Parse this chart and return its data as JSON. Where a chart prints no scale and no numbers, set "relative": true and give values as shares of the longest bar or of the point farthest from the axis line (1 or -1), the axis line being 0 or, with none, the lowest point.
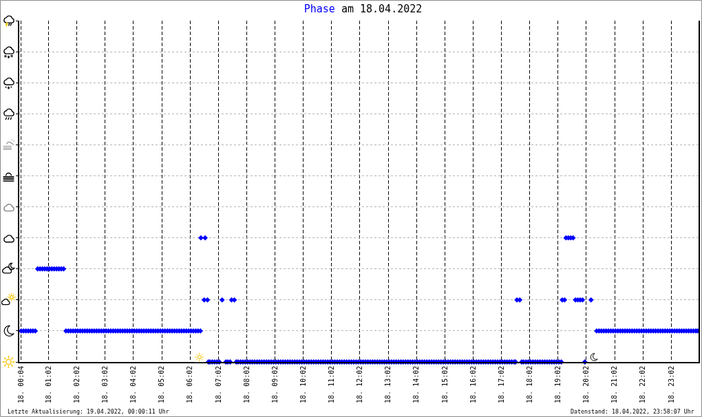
{
  "chart_data": {
    "type": "scatter",
    "title": "Phase am 18.04.2022",
    "annotations": [
      "Letzte Aktualisierung: 19.04.2022, 00:00:11 Uhr",
      "Datenstand: 18.04.2022, 23:58:07 Uhr"
    ],
    "x": [
      "2022-04-18T00:04",
      "2022-04-18T00:09",
      "2022-04-18T00:14",
      "2022-04-18T00:19",
      "2022-04-18T00:24",
      "2022-04-18T00:29",
      "2022-04-18T00:34",
      "2022-04-18T00:39",
      "2022-04-18T00:44",
      "2022-04-18T00:49",
      "2022-04-18T00:54",
      "2022-04-18T00:59",
      "2022-04-18T01:04",
      "2022-04-18T01:09",
      "2022-04-18T01:14",
      "2022-04-18T01:19",
      "2022-04-18T01:24",
      "2022-04-18T01:29",
      "2022-04-18T01:34",
      "2022-04-18T01:39",
      "2022-04-18T01:44",
      "2022-04-18T01:49",
      "2022-04-18T01:54",
      "2022-04-18T01:59",
      "2022-04-18T02:04",
      "2022-04-18T02:09",
      "2022-04-18T02:14",
      "2022-04-18T02:19",
      "2022-04-18T02:24",
      "2022-04-18T02:29",
      "2022-04-18T02:34",
      "2022-04-18T02:39",
      "2022-04-18T02:44",
      "2022-04-18T02:49",
      "2022-04-18T02:54",
      "2022-04-18T02:59",
      "2022-04-18T03:04",
      "2022-04-18T03:09",
      "2022-04-18T03:14",
      "2022-04-18T03:19",
      "2022-04-18T03:24",
      "2022-04-18T03:29",
      "2022-04-18T03:34",
      "2022-04-18T03:39",
      "2022-04-18T03:44",
      "2022-04-18T03:49",
      "2022-04-18T03:54",
      "2022-04-18T03:59",
      "2022-04-18T04:04",
      "2022-04-18T04:09",
      "2022-04-18T04:14",
      "2022-04-18T04:19",
      "2022-04-18T04:24",
      "2022-04-18T04:29",
      "2022-04-18T04:34",
      "2022-04-18T04:39",
      "2022-04-18T04:44",
      "2022-04-18T04:49",
      "2022-04-18T04:54",
      "2022-04-18T04:59",
      "2022-04-18T05:04",
      "2022-04-18T05:09",
      "2022-04-18T05:14",
      "2022-04-18T05:19",
      "2022-04-18T05:24",
      "2022-04-18T05:29",
      "2022-04-18T05:34",
      "2022-04-18T05:39",
      "2022-04-18T05:44",
      "2022-04-18T05:49",
      "2022-04-18T05:54",
      "2022-04-18T05:59",
      "2022-04-18T06:04",
      "2022-04-18T06:09",
      "2022-04-18T06:14",
      "2022-04-18T06:19",
      "2022-04-18T06:24",
      "2022-04-18T06:25",
      "2022-04-18T06:32",
      "2022-04-18T06:34",
      "2022-04-18T06:39",
      "2022-04-18T06:41",
      "2022-04-18T06:44",
      "2022-04-18T06:49",
      "2022-04-18T06:54",
      "2022-04-18T06:59",
      "2022-04-18T07:04",
      "2022-04-18T07:10",
      "2022-04-18T07:18",
      "2022-04-18T07:22",
      "2022-04-18T07:27",
      "2022-04-18T07:30",
      "2022-04-18T07:36",
      "2022-04-18T07:40",
      "2022-04-18T07:44",
      "2022-04-18T07:49",
      "2022-04-18T07:54",
      "2022-04-18T07:59",
      "2022-04-18T08:04",
      "2022-04-18T08:09",
      "2022-04-18T08:14",
      "2022-04-18T08:19",
      "2022-04-18T08:24",
      "2022-04-18T08:29",
      "2022-04-18T08:34",
      "2022-04-18T08:39",
      "2022-04-18T08:44",
      "2022-04-18T08:49",
      "2022-04-18T08:54",
      "2022-04-18T08:59",
      "2022-04-18T09:04",
      "2022-04-18T09:09",
      "2022-04-18T09:14",
      "2022-04-18T09:19",
      "2022-04-18T09:24",
      "2022-04-18T09:29",
      "2022-04-18T09:34",
      "2022-04-18T09:39",
      "2022-04-18T09:44",
      "2022-04-18T09:49",
      "2022-04-18T09:54",
      "2022-04-18T09:59",
      "2022-04-18T10:04",
      "2022-04-18T10:09",
      "2022-04-18T10:14",
      "2022-04-18T10:19",
      "2022-04-18T10:24",
      "2022-04-18T10:29",
      "2022-04-18T10:34",
      "2022-04-18T10:39",
      "2022-04-18T10:44",
      "2022-04-18T10:49",
      "2022-04-18T10:54",
      "2022-04-18T10:59",
      "2022-04-18T11:04",
      "2022-04-18T11:09",
      "2022-04-18T11:14",
      "2022-04-18T11:19",
      "2022-04-18T11:24",
      "2022-04-18T11:29",
      "2022-04-18T11:34",
      "2022-04-18T11:39",
      "2022-04-18T11:44",
      "2022-04-18T11:49",
      "2022-04-18T11:54",
      "2022-04-18T11:59",
      "2022-04-18T12:04",
      "2022-04-18T12:09",
      "2022-04-18T12:14",
      "2022-04-18T12:19",
      "2022-04-18T12:24",
      "2022-04-18T12:29",
      "2022-04-18T12:34",
      "2022-04-18T12:39",
      "2022-04-18T12:44",
      "2022-04-18T12:49",
      "2022-04-18T12:54",
      "2022-04-18T12:59",
      "2022-04-18T13:04",
      "2022-04-18T13:09",
      "2022-04-18T13:14",
      "2022-04-18T13:19",
      "2022-04-18T13:24",
      "2022-04-18T13:29",
      "2022-04-18T13:34",
      "2022-04-18T13:39",
      "2022-04-18T13:44",
      "2022-04-18T13:49",
      "2022-04-18T13:54",
      "2022-04-18T13:59",
      "2022-04-18T14:04",
      "2022-04-18T14:09",
      "2022-04-18T14:14",
      "2022-04-18T14:19",
      "2022-04-18T14:24",
      "2022-04-18T14:29",
      "2022-04-18T14:34",
      "2022-04-18T14:39",
      "2022-04-18T14:44",
      "2022-04-18T14:49",
      "2022-04-18T14:54",
      "2022-04-18T14:59",
      "2022-04-18T15:04",
      "2022-04-18T15:09",
      "2022-04-18T15:14",
      "2022-04-18T15:19",
      "2022-04-18T15:24",
      "2022-04-18T15:29",
      "2022-04-18T15:34",
      "2022-04-18T15:39",
      "2022-04-18T15:44",
      "2022-04-18T15:49",
      "2022-04-18T15:54",
      "2022-04-18T15:59",
      "2022-04-18T16:04",
      "2022-04-18T16:09",
      "2022-04-18T16:14",
      "2022-04-18T16:19",
      "2022-04-18T16:24",
      "2022-04-18T16:29",
      "2022-04-18T16:34",
      "2022-04-18T16:39",
      "2022-04-18T16:44",
      "2022-04-18T16:49",
      "2022-04-18T16:54",
      "2022-04-18T16:59",
      "2022-04-18T17:04",
      "2022-04-18T17:09",
      "2022-04-18T17:14",
      "2022-04-18T17:19",
      "2022-04-18T17:24",
      "2022-04-18T17:29",
      "2022-04-18T17:32",
      "2022-04-18T17:35",
      "2022-04-18T17:41",
      "2022-04-18T17:45",
      "2022-04-18T17:49",
      "2022-04-18T17:54",
      "2022-04-18T17:59",
      "2022-04-18T18:04",
      "2022-04-18T18:09",
      "2022-04-18T18:14",
      "2022-04-18T18:19",
      "2022-04-18T18:24",
      "2022-04-18T18:29",
      "2022-04-18T18:34",
      "2022-04-18T18:39",
      "2022-04-18T18:44",
      "2022-04-18T18:49",
      "2022-04-18T18:54",
      "2022-04-18T18:59",
      "2022-04-18T19:04",
      "2022-04-18T19:09",
      "2022-04-18T19:11",
      "2022-04-18T19:16",
      "2022-04-18T19:19",
      "2022-04-18T19:24",
      "2022-04-18T19:29",
      "2022-04-18T19:34",
      "2022-04-18T19:39",
      "2022-04-18T19:44",
      "2022-04-18T19:49",
      "2022-04-18T19:54",
      "2022-04-18T19:59",
      "2022-04-18T20:12",
      "2022-04-18T20:24",
      "2022-04-18T20:29",
      "2022-04-18T20:34",
      "2022-04-18T20:39",
      "2022-04-18T20:44",
      "2022-04-18T20:49",
      "2022-04-18T20:54",
      "2022-04-18T20:59",
      "2022-04-18T21:04",
      "2022-04-18T21:09",
      "2022-04-18T21:14",
      "2022-04-18T21:19",
      "2022-04-18T21:24",
      "2022-04-18T21:29",
      "2022-04-18T21:34",
      "2022-04-18T21:39",
      "2022-04-18T21:44",
      "2022-04-18T21:49",
      "2022-04-18T21:54",
      "2022-04-18T21:59",
      "2022-04-18T22:04",
      "2022-04-18T22:09",
      "2022-04-18T22:14",
      "2022-04-18T22:19",
      "2022-04-18T22:24",
      "2022-04-18T22:29",
      "2022-04-18T22:34",
      "2022-04-18T22:39",
      "2022-04-18T22:44",
      "2022-04-18T22:49",
      "2022-04-18T22:54",
      "2022-04-18T22:59",
      "2022-04-18T23:04",
      "2022-04-18T23:09",
      "2022-04-18T23:14",
      "2022-04-18T23:19",
      "2022-04-18T23:24",
      "2022-04-18T23:29",
      "2022-04-18T23:34",
      "2022-04-18T23:39",
      "2022-04-18T23:44",
      "2022-04-18T23:49",
      "2022-04-18T23:54",
      "2022-04-18T23:58"
    ],
    "values": [
      0.25,
      0.25,
      0.25,
      0.25,
      0.25,
      0.25,
      0.25,
      0.75,
      0.75,
      0.75,
      0.75,
      0.75,
      0.75,
      0.75,
      0.75,
      0.75,
      0.75,
      0.75,
      0.75,
      0.25,
      0.25,
      0.25,
      0.25,
      0.25,
      0.25,
      0.25,
      0.25,
      0.25,
      0.25,
      0.25,
      0.25,
      0.25,
      0.25,
      0.25,
      0.25,
      0.25,
      0.25,
      0.25,
      0.25,
      0.25,
      0.25,
      0.25,
      0.25,
      0.25,
      0.25,
      0.25,
      0.25,
      0.25,
      0.25,
      0.25,
      0.25,
      0.25,
      0.25,
      0.25,
      0.25,
      0.25,
      0.25,
      0.25,
      0.25,
      0.25,
      0.25,
      0.25,
      0.25,
      0.25,
      0.25,
      0.25,
      0.25,
      0.25,
      0.25,
      0.25,
      0.25,
      0.25,
      0.25,
      0.25,
      0.25,
      0.25,
      0.25,
      1,
      0.5,
      1,
      0.5,
      0,
      0,
      0,
      0,
      0,
      0,
      0.5,
      0,
      0,
      0,
      0.5,
      0.5,
      0,
      0,
      0,
      0,
      0,
      0,
      0,
      0,
      0,
      0,
      0,
      0,
      0,
      0,
      0,
      0,
      0,
      0,
      0,
      0,
      0,
      0,
      0,
      0,
      0,
      0,
      0,
      0,
      0,
      0,
      0,
      0,
      0,
      0,
      0,
      0,
      0,
      0,
      0,
      0,
      0,
      0,
      0,
      0,
      0,
      0,
      0,
      0,
      0,
      0,
      0,
      0,
      0,
      0,
      0,
      0,
      0,
      0,
      0,
      0,
      0,
      0,
      0,
      0,
      0,
      0,
      0,
      0,
      0,
      0,
      0,
      0,
      0,
      0,
      0,
      0,
      0,
      0,
      0,
      0,
      0,
      0,
      0,
      0,
      0,
      0,
      0,
      0,
      0,
      0,
      0,
      0,
      0,
      0,
      0,
      0,
      0,
      0,
      0,
      0,
      0,
      0,
      0,
      0,
      0,
      0,
      0,
      0,
      0,
      0,
      0,
      0,
      0,
      0,
      0,
      0,
      0,
      0,
      0,
      0,
      0.5,
      0.5,
      0,
      0,
      0,
      0,
      0,
      0,
      0,
      0,
      0,
      0,
      0,
      0,
      0,
      0,
      0,
      0,
      0,
      0,
      0.5,
      0.5,
      1,
      1,
      1,
      1,
      0.5,
      0.5,
      0.5,
      0.5,
      0,
      0.5,
      0.25,
      0.25,
      0.25,
      0.25,
      0.25,
      0.25,
      0.25,
      0.25,
      0.25,
      0.25,
      0.25,
      0.25,
      0.25,
      0.25,
      0.25,
      0.25,
      0.25,
      0.25,
      0.25,
      0.25,
      0.25,
      0.25,
      0.25,
      0.25,
      0.25,
      0.25,
      0.25,
      0.25,
      0.25,
      0.25,
      0.25,
      0.25,
      0.25,
      0.25,
      0.25,
      0.25,
      0.25,
      0.25,
      0.25,
      0.25,
      0.25,
      0.25,
      0.25,
      0.25
    ],
    "relative": true,
    "color": "#0000ff",
    "marker": "diamond",
    "xlim": [
      "2022-04-18T00:00",
      "2022-04-19T00:00"
    ],
    "xticks": [
      {
        "value": "2022-04-18T00:04",
        "label": "18. 00:04"
      },
      {
        "value": "2022-04-18T01:02",
        "label": "18. 01:02"
      },
      {
        "value": "2022-04-18T02:02",
        "label": "18. 02:02"
      },
      {
        "value": "2022-04-18T03:02",
        "label": "18. 03:02"
      },
      {
        "value": "2022-04-18T04:02",
        "label": "18. 04:02"
      },
      {
        "value": "2022-04-18T05:02",
        "label": "18. 05:02"
      },
      {
        "value": "2022-04-18T06:02",
        "label": "18. 06:02"
      },
      {
        "value": "2022-04-18T07:02",
        "label": "18. 07:02"
      },
      {
        "value": "2022-04-18T08:02",
        "label": "18. 08:02"
      },
      {
        "value": "2022-04-18T09:02",
        "label": "18. 09:02"
      },
      {
        "value": "2022-04-18T10:02",
        "label": "18. 10:02"
      },
      {
        "value": "2022-04-18T11:02",
        "label": "18. 11:02"
      },
      {
        "value": "2022-04-18T12:02",
        "label": "18. 12:02"
      },
      {
        "value": "2022-04-18T13:02",
        "label": "18. 13:02"
      },
      {
        "value": "2022-04-18T14:02",
        "label": "18. 14:02"
      },
      {
        "value": "2022-04-18T15:02",
        "label": "18. 15:02"
      },
      {
        "value": "2022-04-18T16:02",
        "label": "18. 16:02"
      },
      {
        "value": "2022-04-18T17:02",
        "label": "18. 17:02"
      },
      {
        "value": "2022-04-18T18:02",
        "label": "18. 18:02"
      },
      {
        "value": "2022-04-18T19:02",
        "label": "18. 19:02"
      },
      {
        "value": "2022-04-18T20:02",
        "label": "18. 20:02"
      },
      {
        "value": "2022-04-18T21:02",
        "label": "18. 21:02"
      },
      {
        "value": "2022-04-18T22:02",
        "label": "18. 22:02"
      },
      {
        "value": "2022-04-18T23:02",
        "label": "18. 23:02"
      }
    ],
    "grid": true
  }
}
